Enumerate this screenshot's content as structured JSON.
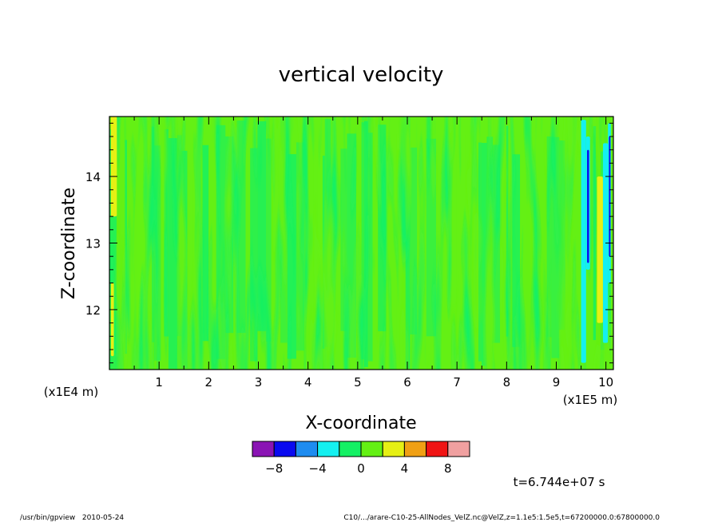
{
  "chart_data": {
    "type": "heatmap",
    "title": "vertical velocity",
    "xlabel": "X-coordinate",
    "ylabel": "Z-coordinate",
    "x_unit": "(x1E5 m)",
    "y_unit": "(x1E4 m)",
    "xlim": [
      0.0,
      10.15
    ],
    "ylim": [
      11.1,
      14.9
    ],
    "x_ticks": [
      1,
      2,
      3,
      4,
      5,
      6,
      7,
      8,
      9,
      10
    ],
    "y_ticks": [
      12,
      13,
      14
    ],
    "dominant_value_range": [
      -2,
      2
    ],
    "colorbar": {
      "levels": [
        -10,
        -8,
        -6,
        -4,
        -2,
        0,
        2,
        4,
        6,
        8,
        10
      ],
      "colors": [
        "#8a14b4",
        "#0a0af0",
        "#1e8cf0",
        "#14f0f0",
        "#14f064",
        "#64f014",
        "#e6f014",
        "#f0a014",
        "#f01414",
        "#f0a0a0"
      ],
      "tick_labels": [
        "−8",
        "−4",
        "0",
        "4",
        "8"
      ],
      "tick_values": [
        -8,
        -4,
        0,
        4,
        8
      ]
    },
    "annotations": {
      "time": "t=6.744e+07 s"
    }
  },
  "footer": {
    "left": "/usr/bin/gpview   2010-05-24",
    "right": "C10/.../arare-C10-25-AllNodes_VelZ.nc@VelZ,z=1.1e5:1.5e5,t=67200000.0:67800000.0"
  }
}
